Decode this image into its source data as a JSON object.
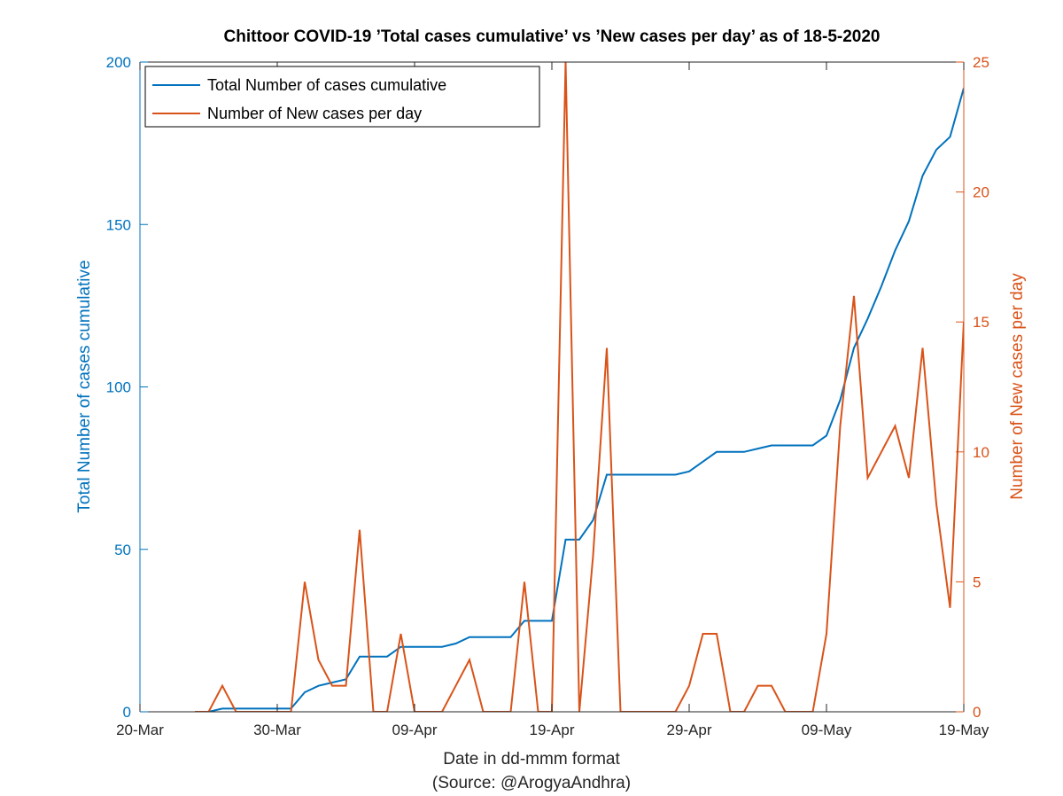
{
  "chart_data": {
    "type": "line",
    "title": "Chittoor COVID-19 ’Total cases cumulative’ vs ’New cases per day’ as of 18-5-2020",
    "xlabel": "Date in dd-mmm format",
    "xlabel2": "(Source: @ArogyaAndhra)",
    "ylabel_left": "Total Number of cases cumulative",
    "ylabel_right": "Number of New cases per day",
    "xlim": [
      "2020-03-20",
      "2020-05-19"
    ],
    "ylim_left": [
      0,
      200
    ],
    "ylim_right": [
      0,
      25
    ],
    "x_ticks": [
      {
        "date": "2020-03-20",
        "label": "20-Mar"
      },
      {
        "date": "2020-03-30",
        "label": "30-Mar"
      },
      {
        "date": "2020-04-09",
        "label": "09-Apr"
      },
      {
        "date": "2020-04-19",
        "label": "19-Apr"
      },
      {
        "date": "2020-04-29",
        "label": "29-Apr"
      },
      {
        "date": "2020-05-09",
        "label": "09-May"
      },
      {
        "date": "2020-05-19",
        "label": "19-May"
      }
    ],
    "y_ticks_left": [
      0,
      50,
      100,
      150,
      200
    ],
    "y_ticks_right": [
      0,
      5,
      10,
      15,
      20,
      25
    ],
    "legend_position": "top-left",
    "colors": {
      "left": "#0072BD",
      "right": "#D95319",
      "axes": "#262626"
    },
    "series": [
      {
        "name": "Total Number of cases cumulative",
        "axis": "left",
        "points": [
          [
            "2020-03-24",
            0
          ],
          [
            "2020-03-25",
            0
          ],
          [
            "2020-03-26",
            1
          ],
          [
            "2020-03-27",
            1
          ],
          [
            "2020-03-28",
            1
          ],
          [
            "2020-03-29",
            1
          ],
          [
            "2020-03-30",
            1
          ],
          [
            "2020-03-31",
            1
          ],
          [
            "2020-04-01",
            6
          ],
          [
            "2020-04-02",
            8
          ],
          [
            "2020-04-03",
            9
          ],
          [
            "2020-04-04",
            10
          ],
          [
            "2020-04-05",
            17
          ],
          [
            "2020-04-06",
            17
          ],
          [
            "2020-04-07",
            17
          ],
          [
            "2020-04-08",
            20
          ],
          [
            "2020-04-09",
            20
          ],
          [
            "2020-04-10",
            20
          ],
          [
            "2020-04-11",
            20
          ],
          [
            "2020-04-12",
            21
          ],
          [
            "2020-04-13",
            23
          ],
          [
            "2020-04-14",
            23
          ],
          [
            "2020-04-15",
            23
          ],
          [
            "2020-04-16",
            23
          ],
          [
            "2020-04-17",
            28
          ],
          [
            "2020-04-18",
            28
          ],
          [
            "2020-04-19",
            28
          ],
          [
            "2020-04-20",
            53
          ],
          [
            "2020-04-21",
            53
          ],
          [
            "2020-04-22",
            59
          ],
          [
            "2020-04-23",
            73
          ],
          [
            "2020-04-24",
            73
          ],
          [
            "2020-04-25",
            73
          ],
          [
            "2020-04-26",
            73
          ],
          [
            "2020-04-27",
            73
          ],
          [
            "2020-04-28",
            73
          ],
          [
            "2020-04-29",
            74
          ],
          [
            "2020-04-30",
            77
          ],
          [
            "2020-05-01",
            80
          ],
          [
            "2020-05-02",
            80
          ],
          [
            "2020-05-03",
            80
          ],
          [
            "2020-05-04",
            81
          ],
          [
            "2020-05-05",
            82
          ],
          [
            "2020-05-06",
            82
          ],
          [
            "2020-05-07",
            82
          ],
          [
            "2020-05-08",
            82
          ],
          [
            "2020-05-09",
            85
          ],
          [
            "2020-05-10",
            96
          ],
          [
            "2020-05-11",
            112
          ],
          [
            "2020-05-12",
            121
          ],
          [
            "2020-05-13",
            131
          ],
          [
            "2020-05-14",
            142
          ],
          [
            "2020-05-15",
            151
          ],
          [
            "2020-05-16",
            165
          ],
          [
            "2020-05-17",
            173
          ],
          [
            "2020-05-18",
            177
          ],
          [
            "2020-05-19",
            192
          ]
        ]
      },
      {
        "name": "Number of New cases per day",
        "axis": "right",
        "points": [
          [
            "2020-03-24",
            0
          ],
          [
            "2020-03-25",
            0
          ],
          [
            "2020-03-26",
            1
          ],
          [
            "2020-03-27",
            0
          ],
          [
            "2020-03-28",
            0
          ],
          [
            "2020-03-29",
            0
          ],
          [
            "2020-03-30",
            0
          ],
          [
            "2020-03-31",
            0
          ],
          [
            "2020-04-01",
            5
          ],
          [
            "2020-04-02",
            2
          ],
          [
            "2020-04-03",
            1
          ],
          [
            "2020-04-04",
            1
          ],
          [
            "2020-04-05",
            7
          ],
          [
            "2020-04-06",
            0
          ],
          [
            "2020-04-07",
            0
          ],
          [
            "2020-04-08",
            3
          ],
          [
            "2020-04-09",
            0
          ],
          [
            "2020-04-10",
            0
          ],
          [
            "2020-04-11",
            0
          ],
          [
            "2020-04-12",
            1
          ],
          [
            "2020-04-13",
            2
          ],
          [
            "2020-04-14",
            0
          ],
          [
            "2020-04-15",
            0
          ],
          [
            "2020-04-16",
            0
          ],
          [
            "2020-04-17",
            5
          ],
          [
            "2020-04-18",
            0
          ],
          [
            "2020-04-19",
            0
          ],
          [
            "2020-04-20",
            25
          ],
          [
            "2020-04-21",
            0
          ],
          [
            "2020-04-22",
            6
          ],
          [
            "2020-04-23",
            14
          ],
          [
            "2020-04-24",
            0
          ],
          [
            "2020-04-25",
            0
          ],
          [
            "2020-04-26",
            0
          ],
          [
            "2020-04-27",
            0
          ],
          [
            "2020-04-28",
            0
          ],
          [
            "2020-04-29",
            1
          ],
          [
            "2020-04-30",
            3
          ],
          [
            "2020-05-01",
            3
          ],
          [
            "2020-05-02",
            0
          ],
          [
            "2020-05-03",
            0
          ],
          [
            "2020-05-04",
            1
          ],
          [
            "2020-05-05",
            1
          ],
          [
            "2020-05-06",
            0
          ],
          [
            "2020-05-07",
            0
          ],
          [
            "2020-05-08",
            0
          ],
          [
            "2020-05-09",
            3
          ],
          [
            "2020-05-10",
            11
          ],
          [
            "2020-05-11",
            16
          ],
          [
            "2020-05-12",
            9
          ],
          [
            "2020-05-13",
            10
          ],
          [
            "2020-05-14",
            11
          ],
          [
            "2020-05-15",
            9
          ],
          [
            "2020-05-16",
            14
          ],
          [
            "2020-05-17",
            8
          ],
          [
            "2020-05-18",
            4
          ],
          [
            "2020-05-19",
            15
          ]
        ]
      }
    ]
  }
}
